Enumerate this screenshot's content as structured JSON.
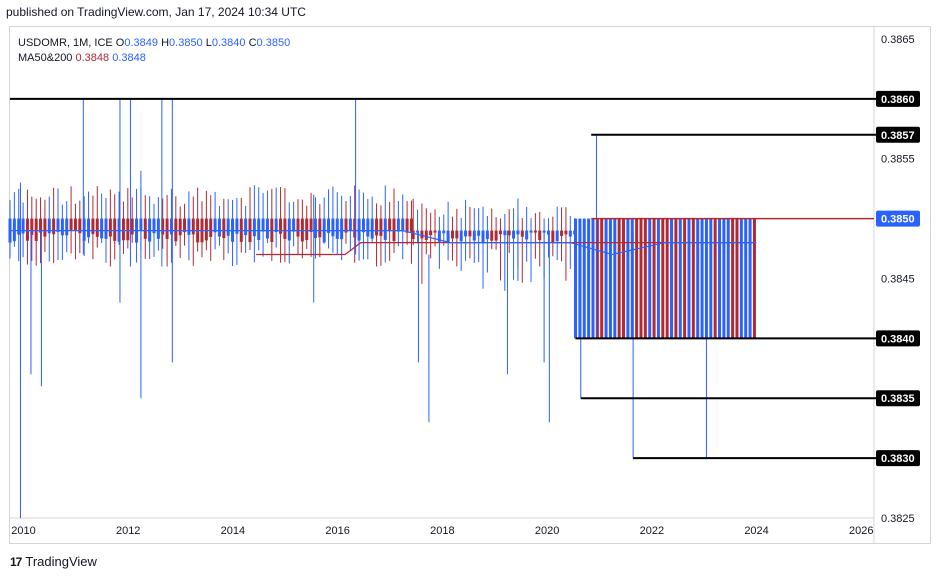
{
  "header": {
    "published": "published on TradingView.com, Jan 17, 2024 10:34 UTC"
  },
  "legend": {
    "symbol": "USDOMR, 1M, ICE",
    "o_label": "O",
    "o_value": "0.3849",
    "h_label": "H",
    "h_value": "0.3850",
    "l_label": "L",
    "l_value": "0.3840",
    "c_label": "C",
    "c_value": "0.3850",
    "ma_label": "MA50&200",
    "ma50_value": "0.3848",
    "ma200_value": "0.3848"
  },
  "footer": {
    "brand": "TradingView",
    "logo": "17"
  },
  "colors": {
    "up": "#2962ff",
    "down": "#b22833",
    "line": "#000000",
    "ma_blue": "#2962ff",
    "ma_red": "#b22833"
  },
  "chart_data": {
    "type": "candlestick",
    "symbol": "USDOMR",
    "interval": "1M",
    "x_range": [
      2009.8,
      2026.3
    ],
    "y_range": [
      0.3825,
      0.3866
    ],
    "x_ticks": [
      "2010",
      "2012",
      "2014",
      "2016",
      "2018",
      "2020",
      "2022",
      "2024",
      "2026"
    ],
    "y_ticks": [
      "0.3865",
      "0.3855",
      "0.3845",
      "0.3825"
    ],
    "horizontal_lines": [
      {
        "price": 0.386,
        "label": "0.3860",
        "x_start": 2009.8,
        "x_end": 2026.3
      },
      {
        "price": 0.3857,
        "label": "0.3857",
        "x_start": 2020.9,
        "x_end": 2026.3
      },
      {
        "price": 0.384,
        "label": "0.3840",
        "x_start": 2020.6,
        "x_end": 2026.3
      },
      {
        "price": 0.3835,
        "label": "0.3835",
        "x_start": 2020.7,
        "x_end": 2026.3
      },
      {
        "price": 0.383,
        "label": "0.3830",
        "x_start": 2021.7,
        "x_end": 2026.3
      }
    ],
    "current_price": {
      "price": 0.385,
      "label": "0.3850",
      "x_start": 2020.9
    },
    "ranges": [
      {
        "start": 2009.8,
        "end": 2017.5,
        "open": 0.385,
        "close": 0.3849,
        "high": 0.3853,
        "low": 0.3846
      },
      {
        "start": 2017.5,
        "end": 2019.5,
        "open": 0.3849,
        "close": 0.3849,
        "high": 0.3852,
        "low": 0.3843
      },
      {
        "start": 2019.5,
        "end": 2020.6,
        "open": 0.3849,
        "close": 0.3849,
        "high": 0.3851,
        "low": 0.3844
      },
      {
        "start": 2020.6,
        "end": 2024.05,
        "open": 0.385,
        "close": 0.384,
        "high": 0.385,
        "low": 0.384
      }
    ],
    "spikes": [
      {
        "t": 2010.0,
        "high": 0.3853,
        "low": 0.3825
      },
      {
        "t": 2010.2,
        "high": 0.3849,
        "low": 0.3837
      },
      {
        "t": 2010.4,
        "high": 0.3849,
        "low": 0.3836
      },
      {
        "t": 2011.2,
        "high": 0.386,
        "low": 0.3847
      },
      {
        "t": 2011.9,
        "high": 0.386,
        "low": 0.3843
      },
      {
        "t": 2012.1,
        "high": 0.386,
        "low": 0.3846
      },
      {
        "t": 2012.3,
        "high": 0.3854,
        "low": 0.3835
      },
      {
        "t": 2012.7,
        "high": 0.386,
        "low": 0.3846
      },
      {
        "t": 2012.9,
        "high": 0.386,
        "low": 0.3838
      },
      {
        "t": 2016.4,
        "high": 0.386,
        "low": 0.3847
      },
      {
        "t": 2015.6,
        "high": 0.3852,
        "low": 0.3843
      },
      {
        "t": 2017.6,
        "high": 0.3849,
        "low": 0.3838
      },
      {
        "t": 2017.8,
        "high": 0.3847,
        "low": 0.3833
      },
      {
        "t": 2019.3,
        "high": 0.3849,
        "low": 0.3837
      },
      {
        "t": 2020.0,
        "high": 0.3849,
        "low": 0.3838
      },
      {
        "t": 2020.1,
        "high": 0.3849,
        "low": 0.3833
      },
      {
        "t": 2020.7,
        "high": 0.3849,
        "low": 0.3835
      },
      {
        "t": 2021.0,
        "high": 0.3857,
        "low": 0.384
      },
      {
        "t": 2021.7,
        "high": 0.3849,
        "low": 0.383
      },
      {
        "t": 2023.1,
        "high": 0.3849,
        "low": 0.383
      }
    ],
    "ma50": [
      [
        2014.5,
        0.3847
      ],
      [
        2015.5,
        0.3847
      ],
      [
        2016.2,
        0.3847
      ],
      [
        2016.5,
        0.3848
      ],
      [
        2017.5,
        0.3848
      ],
      [
        2018.5,
        0.3848
      ],
      [
        2019.5,
        0.3848
      ],
      [
        2020.5,
        0.3848
      ],
      [
        2021.5,
        0.3848
      ],
      [
        2022.5,
        0.3848
      ],
      [
        2024.05,
        0.3848
      ]
    ],
    "ma200": [
      [
        2009.8,
        0.3849
      ],
      [
        2011,
        0.3849
      ],
      [
        2013,
        0.3849
      ],
      [
        2015,
        0.3849
      ],
      [
        2017.3,
        0.3849
      ],
      [
        2018.2,
        0.3848
      ],
      [
        2019.3,
        0.3848
      ],
      [
        2020.5,
        0.3848
      ],
      [
        2021.3,
        0.3847
      ],
      [
        2022.3,
        0.3848
      ],
      [
        2024.05,
        0.3848
      ]
    ]
  }
}
